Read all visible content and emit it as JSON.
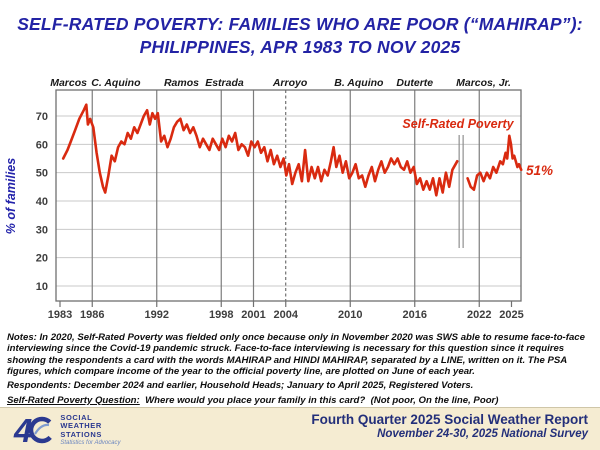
{
  "title": {
    "line1": "SELF-RATED POVERTY: FAMILIES WHO ARE POOR (“MAHIRAP”):",
    "line2": "PHILIPPINES, APR 1983 TO NOV 2025"
  },
  "colors": {
    "line_red": "#d92a10",
    "title_navy": "#2323a5",
    "axis_blue": "#2222aa",
    "footer_bg": "#f5ecd2",
    "footer_text": "#232f7a",
    "grid_light": "#c9c9c9",
    "grid_dark": "#7d7d7d"
  },
  "chart_data": {
    "type": "line",
    "title": "Self-Rated Poverty",
    "ylabel": "% of families",
    "series_label": "Self-Rated Poverty",
    "end_label": "51%",
    "axes": {
      "x_ticks": [
        1983,
        1986,
        1992,
        1998,
        2001,
        2004,
        2010,
        2016,
        2022,
        2025
      ],
      "y_ticks": [
        10,
        20,
        30,
        40,
        50,
        60,
        70
      ],
      "xlim": [
        1983,
        2026.1
      ],
      "ylim": [
        0,
        79
      ],
      "grid": true
    },
    "presidents": [
      {
        "name": "Marcos",
        "label_year": 1983.8
      },
      {
        "name": "C. Aquino",
        "label_year": 1988.2
      },
      {
        "name": "Ramos",
        "label_year": 1994.3
      },
      {
        "name": "Estrada",
        "label_year": 1998.3
      },
      {
        "name": "Arroyo",
        "label_year": 2004.4
      },
      {
        "name": "B. Aquino",
        "label_year": 2010.8
      },
      {
        "name": "Duterte",
        "label_year": 2016.0
      },
      {
        "name": "Marcos, Jr.",
        "label_year": 2022.4
      }
    ],
    "era_boundary_years": [
      1986,
      1992,
      1998,
      2001,
      2010,
      2016,
      2022
    ],
    "dashed_boundary_year": 2004,
    "gap_marker_years": [
      2020.13,
      2020.5
    ],
    "series": [
      {
        "name": "Self-Rated Poverty",
        "color": "#d92a10",
        "segments": [
          [
            [
              1983.3,
              55
            ],
            [
              1983.7,
              58
            ],
            [
              1984.0,
              61
            ],
            [
              1984.4,
              65
            ],
            [
              1984.8,
              69
            ],
            [
              1985.2,
              72
            ],
            [
              1985.45,
              74
            ],
            [
              1985.6,
              67
            ],
            [
              1985.8,
              69
            ],
            [
              1986.1,
              66
            ],
            [
              1986.4,
              57
            ],
            [
              1986.7,
              50
            ],
            [
              1987.0,
              45
            ],
            [
              1987.2,
              43
            ],
            [
              1987.5,
              49
            ],
            [
              1987.8,
              56
            ],
            [
              1988.1,
              54
            ],
            [
              1988.4,
              59
            ],
            [
              1988.7,
              61
            ],
            [
              1989.0,
              60
            ],
            [
              1989.3,
              64
            ],
            [
              1989.6,
              62
            ],
            [
              1989.9,
              66
            ],
            [
              1990.2,
              64
            ],
            [
              1990.5,
              67
            ],
            [
              1990.8,
              70
            ],
            [
              1991.1,
              72
            ],
            [
              1991.35,
              67
            ],
            [
              1991.6,
              71
            ],
            [
              1991.85,
              69
            ],
            [
              1992.1,
              71
            ],
            [
              1992.4,
              61
            ],
            [
              1992.7,
              63
            ],
            [
              1993.0,
              59
            ],
            [
              1993.3,
              62
            ],
            [
              1993.6,
              66
            ],
            [
              1993.9,
              68
            ],
            [
              1994.2,
              69
            ],
            [
              1994.5,
              65
            ],
            [
              1994.8,
              67
            ],
            [
              1995.1,
              64
            ],
            [
              1995.4,
              66
            ],
            [
              1995.7,
              63
            ],
            [
              1996.0,
              59
            ],
            [
              1996.3,
              62
            ],
            [
              1996.6,
              60
            ],
            [
              1996.9,
              58
            ],
            [
              1997.2,
              62
            ],
            [
              1997.5,
              60
            ],
            [
              1997.8,
              58
            ],
            [
              1998.1,
              62
            ],
            [
              1998.4,
              59
            ],
            [
              1998.7,
              63
            ],
            [
              1999.0,
              61
            ],
            [
              1999.3,
              64
            ],
            [
              1999.6,
              58
            ],
            [
              1999.9,
              60
            ],
            [
              2000.2,
              59
            ],
            [
              2000.5,
              56
            ],
            [
              2000.8,
              61
            ],
            [
              2001.1,
              59
            ],
            [
              2001.4,
              61
            ],
            [
              2001.7,
              57
            ],
            [
              2002.0,
              59
            ],
            [
              2002.3,
              54
            ],
            [
              2002.6,
              58
            ],
            [
              2002.9,
              53
            ],
            [
              2003.2,
              56
            ],
            [
              2003.5,
              52
            ],
            [
              2003.8,
              55
            ],
            [
              2004.05,
              49
            ],
            [
              2004.3,
              53
            ],
            [
              2004.6,
              46
            ],
            [
              2004.9,
              50
            ],
            [
              2005.2,
              53
            ],
            [
              2005.5,
              47
            ],
            [
              2005.8,
              58
            ],
            [
              2006.1,
              47
            ],
            [
              2006.4,
              52
            ],
            [
              2006.7,
              48
            ],
            [
              2007.0,
              52
            ],
            [
              2007.3,
              47
            ],
            [
              2007.6,
              51
            ],
            [
              2007.9,
              49
            ],
            [
              2008.2,
              54
            ],
            [
              2008.45,
              59
            ],
            [
              2008.7,
              52
            ],
            [
              2009.0,
              56
            ],
            [
              2009.3,
              50
            ],
            [
              2009.6,
              54
            ],
            [
              2009.9,
              48
            ],
            [
              2010.2,
              50
            ],
            [
              2010.5,
              53
            ],
            [
              2010.8,
              48
            ],
            [
              2011.1,
              49
            ],
            [
              2011.4,
              45
            ],
            [
              2011.7,
              49
            ],
            [
              2012.0,
              52
            ],
            [
              2012.3,
              47
            ],
            [
              2012.6,
              51
            ],
            [
              2012.9,
              54
            ],
            [
              2013.2,
              50
            ],
            [
              2013.5,
              52
            ],
            [
              2013.8,
              55
            ],
            [
              2014.1,
              53
            ],
            [
              2014.4,
              55
            ],
            [
              2014.7,
              52
            ],
            [
              2015.0,
              51
            ],
            [
              2015.3,
              54
            ],
            [
              2015.6,
              50
            ],
            [
              2015.9,
              52
            ],
            [
              2016.2,
              46
            ],
            [
              2016.5,
              48
            ],
            [
              2016.8,
              44
            ],
            [
              2017.1,
              47
            ],
            [
              2017.4,
              44
            ],
            [
              2017.7,
              48
            ],
            [
              2018.0,
              42
            ],
            [
              2018.3,
              48
            ],
            [
              2018.6,
              43
            ],
            [
              2018.9,
              50
            ],
            [
              2019.2,
              45
            ],
            [
              2019.5,
              51
            ],
            [
              2019.95,
              54
            ]
          ],
          [
            [
              2020.92,
              48
            ],
            [
              2021.2,
              45
            ],
            [
              2021.5,
              44
            ],
            [
              2021.8,
              49
            ],
            [
              2022.1,
              50
            ],
            [
              2022.4,
              47
            ],
            [
              2022.7,
              50
            ],
            [
              2023.0,
              48
            ],
            [
              2023.3,
              52
            ],
            [
              2023.6,
              50
            ],
            [
              2023.95,
              54
            ],
            [
              2024.2,
              53
            ],
            [
              2024.45,
              57
            ],
            [
              2024.6,
              55
            ],
            [
              2024.8,
              63
            ],
            [
              2024.95,
              60
            ],
            [
              2025.1,
              55
            ],
            [
              2025.25,
              56
            ],
            [
              2025.4,
              54
            ],
            [
              2025.55,
              52
            ],
            [
              2025.7,
              53
            ],
            [
              2025.9,
              51
            ]
          ]
        ]
      }
    ]
  },
  "notes": {
    "para1": "Notes: In 2020, Self-Rated Poverty was fielded only once because only in November 2020 was SWS able to resume face-to-face interviewing since the Covid-19 pandemic struck. Face-to-face interviewing is necessary for this question since it requires showing the respondents a card with the words MAHIRAP and HINDI MAHIRAP, separated by a LINE, written on it. The PSA figures, which compare income of the year to the official poverty line, are plotted on June of each year.",
    "para2": "Respondents: December 2024 and earlier, Household Heads; January to April 2025, Registered Voters.",
    "question_label": "Self-Rated Poverty Question:",
    "question_text": "  Where would you place your family in this card?  (Not poor, On the line, Poor)"
  },
  "footer": {
    "line1": "Fourth Quarter 2025 Social Weather Report",
    "line2": "November 24-30, 2025 National Survey",
    "logo_40": "4",
    "logo_words": [
      "SOCIAL",
      "WEATHER",
      "STATIONS"
    ],
    "logo_tagline": "Statistics for Advocacy"
  }
}
